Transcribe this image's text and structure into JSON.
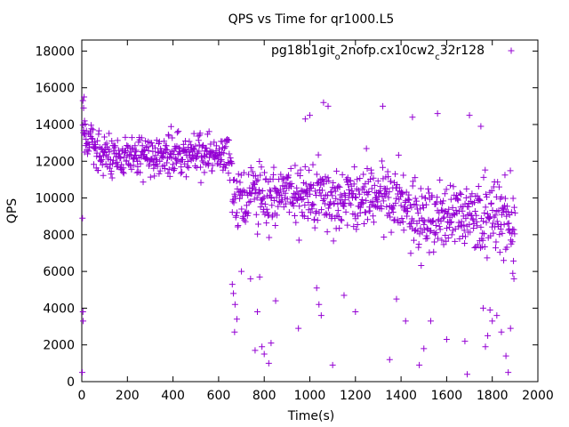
{
  "chart_data": {
    "type": "scatter",
    "title": "QPS vs Time for qr1000.L5",
    "xlabel": "Time(s)",
    "ylabel": "QPS",
    "xlim": [
      0,
      2000
    ],
    "ylim": [
      0,
      18600
    ],
    "xticks": [
      "0",
      "200",
      "400",
      "600",
      "800",
      "1000",
      "1200",
      "1400",
      "1600",
      "1800",
      "2000"
    ],
    "yticks": [
      "0",
      "2000",
      "4000",
      "6000",
      "8000",
      "10000",
      "12000",
      "14000",
      "16000",
      "18000"
    ],
    "grid": false,
    "legend_position": "top-right",
    "series": [
      {
        "name": "pg18b1git_o2nofp.cx10cw2_c32r128",
        "label_parts": [
          {
            "text": "pg18b1git",
            "sub": false
          },
          {
            "text": "o",
            "sub": true
          },
          {
            "text": "2nofp.cx10cw2",
            "sub": false
          },
          {
            "text": "c",
            "sub": true
          },
          {
            "text": "32r128",
            "sub": false
          }
        ],
        "color": "#9400d3",
        "marker": "plus",
        "segments": [
          {
            "x0": 5,
            "x1": 60,
            "center": 13200,
            "spread": 1100
          },
          {
            "x0": 60,
            "x1": 660,
            "center": 12300,
            "spread": 1000
          },
          {
            "x0": 660,
            "x1": 1000,
            "center": 10200,
            "spread": 1600
          },
          {
            "x0": 1000,
            "x1": 1400,
            "center": 9900,
            "spread": 1700
          },
          {
            "x0": 1400,
            "x1": 1900,
            "center": 9000,
            "spread": 1800
          }
        ],
        "points": [
          [
            5,
            15300
          ],
          [
            8,
            14900
          ],
          [
            10,
            15500
          ],
          [
            12,
            14200
          ],
          [
            3,
            8900
          ],
          [
            5,
            3800
          ],
          [
            6,
            3300
          ],
          [
            2,
            500
          ],
          [
            660,
            5300
          ],
          [
            665,
            4800
          ],
          [
            670,
            2700
          ],
          [
            672,
            4200
          ],
          [
            680,
            3400
          ],
          [
            700,
            6000
          ],
          [
            740,
            5600
          ],
          [
            760,
            1700
          ],
          [
            770,
            3800
          ],
          [
            780,
            5700
          ],
          [
            790,
            1900
          ],
          [
            800,
            1500
          ],
          [
            820,
            1000
          ],
          [
            830,
            2100
          ],
          [
            850,
            4400
          ],
          [
            950,
            2900
          ],
          [
            980,
            14300
          ],
          [
            1000,
            14500
          ],
          [
            1030,
            5100
          ],
          [
            1040,
            4200
          ],
          [
            1050,
            3600
          ],
          [
            1060,
            15200
          ],
          [
            1080,
            15000
          ],
          [
            1100,
            900
          ],
          [
            1150,
            4700
          ],
          [
            1200,
            3800
          ],
          [
            1320,
            15000
          ],
          [
            1350,
            1200
          ],
          [
            1380,
            4500
          ],
          [
            1420,
            3300
          ],
          [
            1450,
            14400
          ],
          [
            1480,
            900
          ],
          [
            1500,
            1800
          ],
          [
            1530,
            3300
          ],
          [
            1560,
            14600
          ],
          [
            1600,
            2300
          ],
          [
            1680,
            2200
          ],
          [
            1690,
            400
          ],
          [
            1700,
            14500
          ],
          [
            1750,
            13900
          ],
          [
            1760,
            4000
          ],
          [
            1770,
            1900
          ],
          [
            1780,
            2500
          ],
          [
            1790,
            3900
          ],
          [
            1800,
            3300
          ],
          [
            1820,
            3600
          ],
          [
            1840,
            2700
          ],
          [
            1850,
            6600
          ],
          [
            1860,
            1400
          ],
          [
            1870,
            500
          ],
          [
            1880,
            2900
          ],
          [
            1890,
            5900
          ],
          [
            1895,
            5600
          ]
        ]
      }
    ]
  }
}
